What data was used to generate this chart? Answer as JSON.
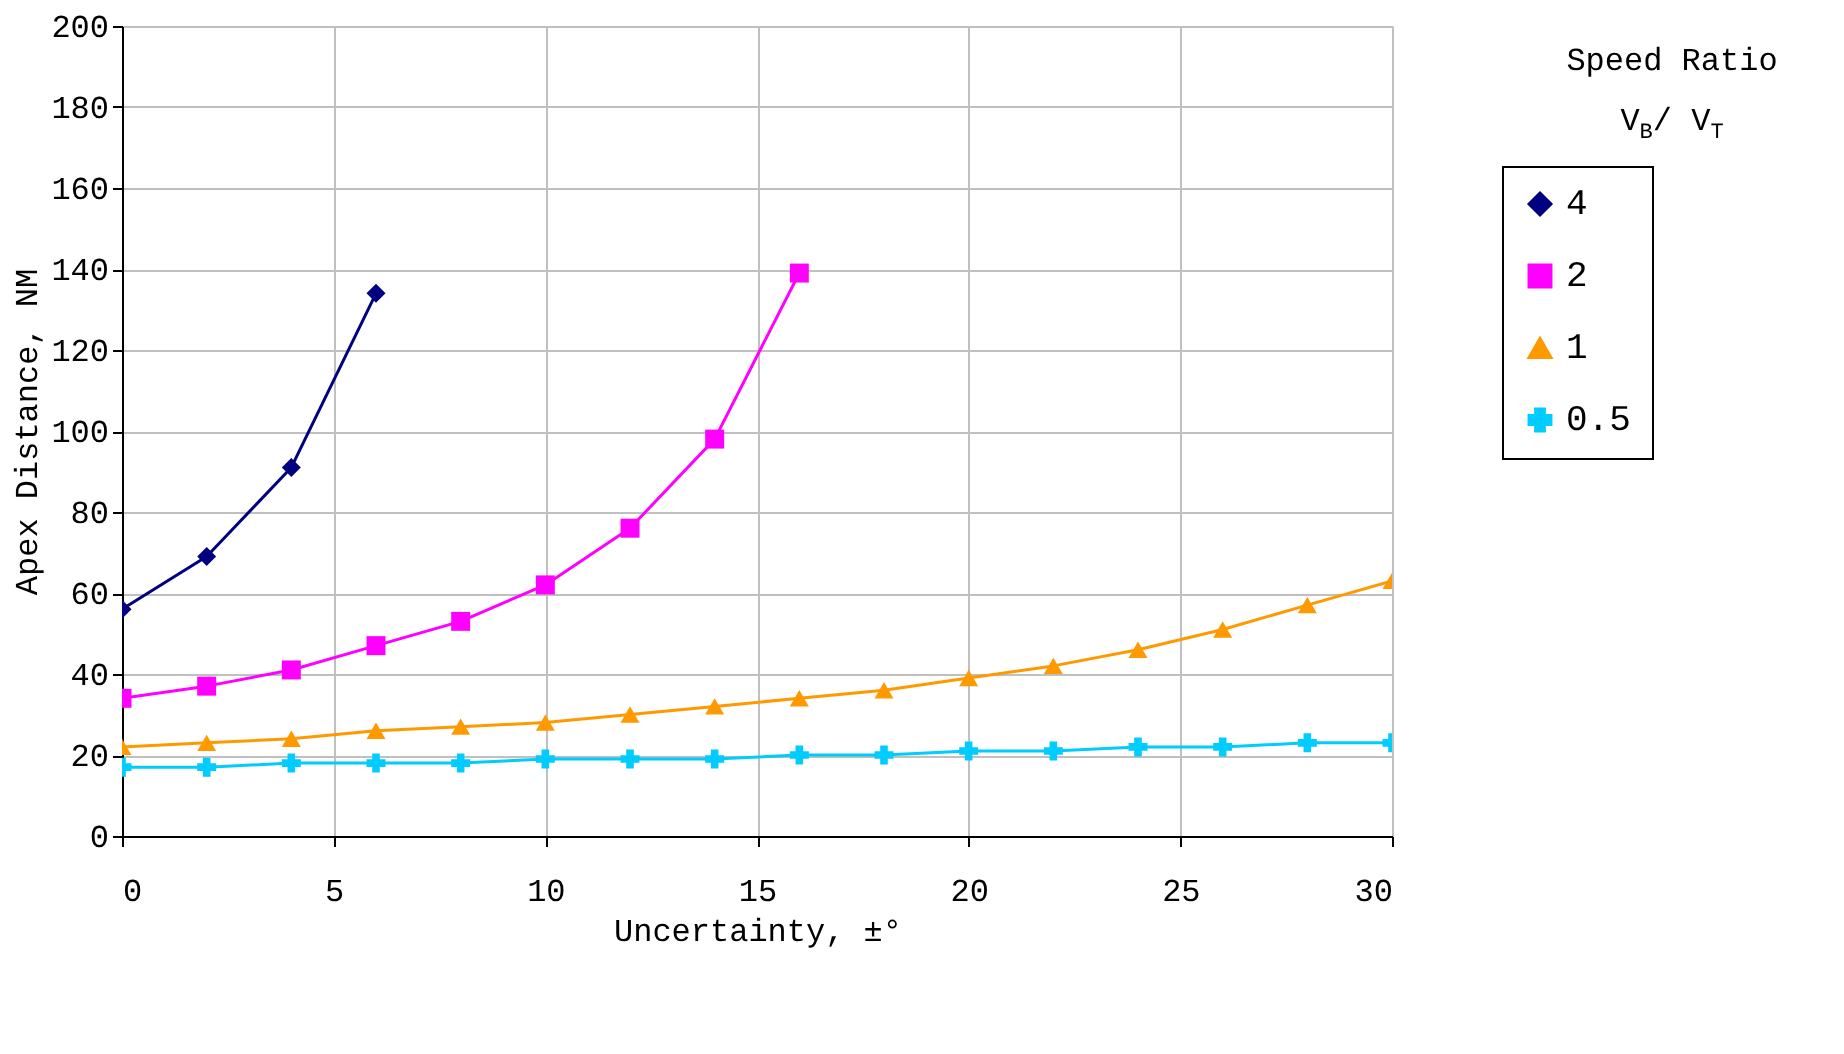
{
  "chart_data": {
    "type": "line",
    "xlabel": "Uncertainty, ±°",
    "ylabel": "Apex Distance, NM",
    "legend_title": "Speed Ratio V$_{B}$/ V$_{T}$",
    "x": [
      0,
      2,
      4,
      6,
      8,
      10,
      12,
      14,
      16,
      18,
      20,
      22,
      24,
      26,
      28,
      30
    ],
    "series": [
      {
        "name": "4",
        "color": "#000080",
        "marker": "diamond",
        "values": [
          56,
          69,
          91,
          134,
          null,
          null,
          null,
          null,
          null,
          null,
          null,
          null,
          null,
          null,
          null,
          null
        ]
      },
      {
        "name": "2",
        "color": "#ff00ff",
        "marker": "square",
        "values": [
          34,
          37,
          41,
          47,
          53,
          62,
          76,
          98,
          139,
          null,
          null,
          null,
          null,
          null,
          null,
          null
        ]
      },
      {
        "name": "1",
        "color": "#ff9900",
        "marker": "triangle",
        "values": [
          22,
          23,
          24,
          26,
          27,
          28,
          30,
          32,
          34,
          36,
          39,
          42,
          46,
          51,
          57,
          63
        ]
      },
      {
        "name": "0.5",
        "color": "#00ccff",
        "marker": "cross",
        "values": [
          17,
          17,
          18,
          18,
          18,
          19,
          19,
          19,
          20,
          20,
          21,
          21,
          22,
          22,
          23,
          23
        ]
      }
    ],
    "xlim": [
      0,
      30
    ],
    "xticks": [
      0,
      5,
      10,
      15,
      20,
      25,
      30
    ],
    "ylim": [
      0,
      200
    ],
    "yticks": [
      0,
      20,
      40,
      60,
      80,
      100,
      120,
      140,
      160,
      180,
      200
    ],
    "grid": true,
    "legend": "right",
    "line_style": "solid"
  }
}
